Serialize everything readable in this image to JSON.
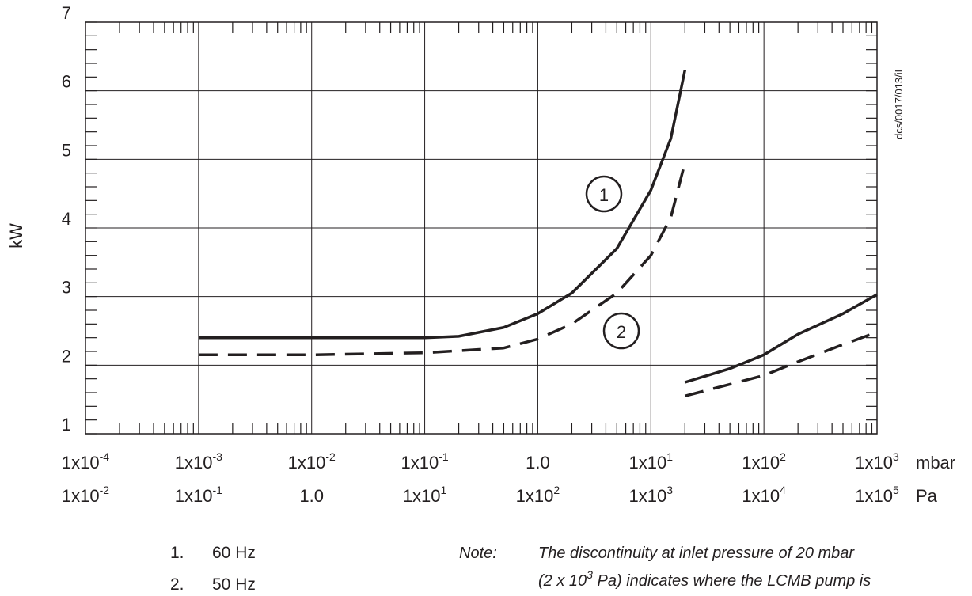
{
  "chart_data": {
    "type": "line",
    "y_label": "kW",
    "side_text": "dcs/0017/013/iL",
    "x_unit": "mbar",
    "x2_unit": "Pa",
    "xscale": "log",
    "xlim": [
      0.0001,
      1000
    ],
    "x2lim": [
      0.01,
      100000
    ],
    "ylim": [
      1,
      7
    ],
    "yticks": [
      1,
      2,
      3,
      4,
      5,
      6,
      7
    ],
    "xticks": [
      {
        "value": 0.0001,
        "label": "1x10",
        "sup": "-4"
      },
      {
        "value": 0.001,
        "label": "1x10",
        "sup": "-3"
      },
      {
        "value": 0.01,
        "label": "1x10",
        "sup": "-2"
      },
      {
        "value": 0.1,
        "label": "1x10",
        "sup": "-1"
      },
      {
        "value": 1,
        "label": "1.0"
      },
      {
        "value": 10,
        "label": "1x10",
        "sup": "1"
      },
      {
        "value": 100,
        "label": "1x10",
        "sup": "2"
      },
      {
        "value": 1000,
        "label": "1x10",
        "sup": "3"
      }
    ],
    "x2ticks": [
      {
        "value": 0.01,
        "label": "1x10",
        "sup": "-2"
      },
      {
        "value": 0.1,
        "label": "1x10",
        "sup": "-1"
      },
      {
        "value": 1,
        "label": "1.0"
      },
      {
        "value": 10,
        "label": "1x10",
        "sup": "1"
      },
      {
        "value": 100,
        "label": "1x10",
        "sup": "2"
      },
      {
        "value": 1000,
        "label": "1x10",
        "sup": "3"
      },
      {
        "value": 10000,
        "label": "1x10",
        "sup": "4"
      },
      {
        "value": 100000,
        "label": "1x10",
        "sup": "5"
      }
    ],
    "grid": true,
    "minor_ticks": true,
    "series": [
      {
        "name": "1",
        "color": "#231f20",
        "dash": false,
        "x": [
          0.001,
          0.01,
          0.1,
          0.2,
          0.5,
          1,
          2,
          5,
          10,
          15,
          20,
          null,
          20,
          50,
          100,
          200,
          500,
          1000
        ],
        "values": [
          2.4,
          2.4,
          2.4,
          2.42,
          2.55,
          2.75,
          3.05,
          3.7,
          4.55,
          5.3,
          6.3,
          null,
          1.75,
          1.95,
          2.15,
          2.45,
          2.75,
          3.03
        ]
      },
      {
        "name": "2",
        "color": "#231f20",
        "dash": true,
        "x": [
          0.001,
          0.01,
          0.1,
          0.5,
          1,
          2,
          5,
          10,
          15,
          20,
          null,
          20,
          100,
          200,
          500,
          1000
        ],
        "values": [
          2.15,
          2.15,
          2.18,
          2.25,
          2.38,
          2.6,
          3.05,
          3.6,
          4.15,
          4.95,
          null,
          1.55,
          1.85,
          2.05,
          2.3,
          2.48
        ]
      }
    ],
    "legend": [
      {
        "number": "1.",
        "label": "60 Hz"
      },
      {
        "number": "2.",
        "label": "50 Hz"
      }
    ],
    "note": {
      "heading": "Note:",
      "line1": "The discontinuity at inlet pressure of 20 mbar",
      "line2_start": "(2 x 10",
      "line2_sup": "3",
      "line2_end": " Pa) indicates where the LCMB pump is"
    }
  }
}
